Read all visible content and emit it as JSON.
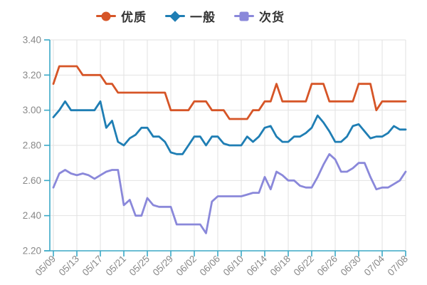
{
  "canvas": {
    "background": "#ffffff"
  },
  "legend": {
    "position": "top",
    "text_color": "#333333",
    "items": [
      {
        "label": "优质",
        "color": "#d65527",
        "marker": "circle"
      },
      {
        "label": "一般",
        "color": "#1f7eb4",
        "marker": "diamond"
      },
      {
        "label": "次货",
        "color": "#8a88da",
        "marker": "square"
      }
    ]
  },
  "axis_style": {
    "axis_color": "#3ba9c6",
    "grid_color": "#e2e2e2",
    "label_color": "#888888",
    "grid": true
  },
  "chart_data": {
    "type": "line",
    "title": "",
    "xlabel": "",
    "ylabel": "",
    "ylim": [
      2.2,
      3.4
    ],
    "y_tick_labels": [
      "3.40",
      "3.20",
      "3.00",
      "2.80",
      "2.60",
      "2.40",
      "2.20"
    ],
    "x_tick_labels": [
      "05/09",
      "05/13",
      "05/17",
      "05/21",
      "05/25",
      "05/29",
      "06/02",
      "06/06",
      "06/10",
      "06/14",
      "06/18",
      "06/22",
      "06/26",
      "06/30",
      "07/04",
      "07/08"
    ],
    "legend_position": "top",
    "categories": [
      "05/09",
      "05/10",
      "05/11",
      "05/12",
      "05/13",
      "05/14",
      "05/15",
      "05/16",
      "05/17",
      "05/18",
      "05/19",
      "05/20",
      "05/21",
      "05/22",
      "05/23",
      "05/24",
      "05/25",
      "05/26",
      "05/27",
      "05/28",
      "05/29",
      "05/30",
      "05/31",
      "06/01",
      "06/02",
      "06/03",
      "06/04",
      "06/05",
      "06/06",
      "06/07",
      "06/08",
      "06/09",
      "06/10",
      "06/11",
      "06/12",
      "06/13",
      "06/14",
      "06/15",
      "06/16",
      "06/17",
      "06/18",
      "06/19",
      "06/20",
      "06/21",
      "06/22",
      "06/23",
      "06/24",
      "06/25",
      "06/26",
      "06/27",
      "06/28",
      "06/29",
      "06/30",
      "07/01",
      "07/02",
      "07/03",
      "07/04",
      "07/05",
      "07/06",
      "07/07",
      "07/08"
    ],
    "series": [
      {
        "name": "优质",
        "color": "#d65527",
        "values": [
          3.15,
          3.25,
          3.25,
          3.25,
          3.25,
          3.2,
          3.2,
          3.2,
          3.2,
          3.15,
          3.15,
          3.1,
          3.1,
          3.1,
          3.1,
          3.1,
          3.1,
          3.1,
          3.1,
          3.1,
          3.0,
          3.0,
          3.0,
          3.0,
          3.05,
          3.05,
          3.05,
          3.0,
          3.0,
          3.0,
          2.95,
          2.95,
          2.95,
          2.95,
          3.0,
          3.0,
          3.05,
          3.05,
          3.15,
          3.05,
          3.05,
          3.05,
          3.05,
          3.05,
          3.15,
          3.15,
          3.15,
          3.05,
          3.05,
          3.05,
          3.05,
          3.05,
          3.15,
          3.15,
          3.15,
          3.0,
          3.05,
          3.05,
          3.05,
          3.05,
          3.05
        ]
      },
      {
        "name": "一般",
        "color": "#1f7eb4",
        "values": [
          2.96,
          3.0,
          3.05,
          3.0,
          3.0,
          3.0,
          3.0,
          3.0,
          3.05,
          2.9,
          2.94,
          2.82,
          2.8,
          2.84,
          2.86,
          2.9,
          2.9,
          2.85,
          2.85,
          2.82,
          2.76,
          2.75,
          2.75,
          2.8,
          2.85,
          2.85,
          2.8,
          2.85,
          2.85,
          2.81,
          2.8,
          2.8,
          2.8,
          2.85,
          2.82,
          2.85,
          2.9,
          2.91,
          2.85,
          2.82,
          2.82,
          2.85,
          2.85,
          2.87,
          2.9,
          2.97,
          2.93,
          2.88,
          2.82,
          2.82,
          2.85,
          2.91,
          2.92,
          2.88,
          2.84,
          2.85,
          2.85,
          2.87,
          2.91,
          2.89,
          2.89
        ]
      },
      {
        "name": "次货",
        "color": "#8a88da",
        "values": [
          2.56,
          2.64,
          2.66,
          2.64,
          2.63,
          2.64,
          2.63,
          2.61,
          2.63,
          2.65,
          2.66,
          2.66,
          2.46,
          2.49,
          2.4,
          2.4,
          2.5,
          2.46,
          2.45,
          2.45,
          2.45,
          2.35,
          2.35,
          2.35,
          2.35,
          2.35,
          2.3,
          2.48,
          2.51,
          2.51,
          2.51,
          2.51,
          2.51,
          2.52,
          2.53,
          2.53,
          2.62,
          2.55,
          2.65,
          2.63,
          2.6,
          2.6,
          2.57,
          2.56,
          2.56,
          2.62,
          2.69,
          2.75,
          2.72,
          2.65,
          2.65,
          2.67,
          2.7,
          2.7,
          2.62,
          2.55,
          2.56,
          2.56,
          2.58,
          2.6,
          2.65
        ]
      }
    ]
  }
}
